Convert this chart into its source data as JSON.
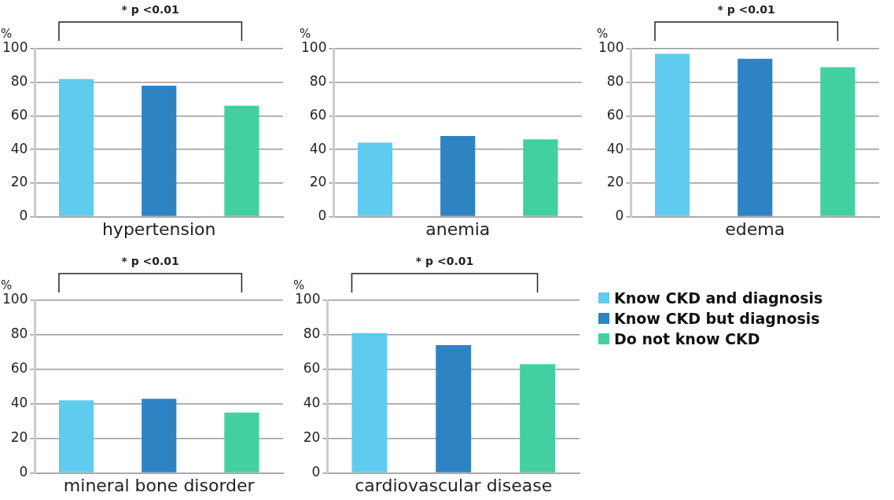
{
  "chart_data": [
    {
      "type": "bar",
      "categories": [
        null
      ],
      "xlabel": "hypertension",
      "ylabel": "%",
      "ylim": [
        0,
        100
      ],
      "yticks": [
        0,
        20,
        40,
        60,
        80,
        100
      ],
      "grid": "y",
      "tick_labels": "y",
      "annotations": [
        "* p <0.01"
      ],
      "legend": false,
      "series": [
        {
          "color": "#5ecbef",
          "values": [
            82
          ]
        },
        {
          "color": "#2e83c3",
          "values": [
            78
          ]
        },
        {
          "color": "#42d0a0",
          "values": [
            66
          ]
        }
      ]
    },
    {
      "type": "bar",
      "categories": [
        null
      ],
      "xlabel": "anemia",
      "ylabel": "%",
      "ylim": [
        0,
        100
      ],
      "yticks": [
        0,
        20,
        40,
        60,
        80,
        100
      ],
      "grid": "y",
      "tick_labels": "y",
      "legend": false,
      "series": [
        {
          "color": "#5ecbef",
          "values": [
            44
          ]
        },
        {
          "color": "#2e83c3",
          "values": [
            48
          ]
        },
        {
          "color": "#42d0a0",
          "values": [
            46
          ]
        }
      ]
    },
    {
      "type": "bar",
      "categories": [
        null
      ],
      "xlabel": "edema",
      "ylabel": "%",
      "ylim": [
        0,
        100
      ],
      "yticks": [
        0,
        20,
        40,
        60,
        80,
        100
      ],
      "grid": "y",
      "tick_labels": "y",
      "annotations": [
        "* p <0.01"
      ],
      "legend": false,
      "series": [
        {
          "color": "#5ecbef",
          "values": [
            97
          ]
        },
        {
          "color": "#2e83c3",
          "values": [
            94
          ]
        },
        {
          "color": "#42d0a0",
          "values": [
            89
          ]
        }
      ]
    },
    {
      "type": "bar",
      "categories": [
        null
      ],
      "xlabel": "mineral bone disorder",
      "ylabel": "%",
      "ylim": [
        0,
        100
      ],
      "yticks": [
        0,
        20,
        40,
        60,
        80,
        100
      ],
      "grid": "y",
      "tick_labels": "y",
      "annotations": [
        "* p <0.01"
      ],
      "legend": false,
      "series": [
        {
          "color": "#5ecbef",
          "values": [
            42
          ]
        },
        {
          "color": "#2e83c3",
          "values": [
            43
          ]
        },
        {
          "color": "#42d0a0",
          "values": [
            35
          ]
        }
      ]
    },
    {
      "type": "bar",
      "categories": [
        null
      ],
      "xlabel": "cardiovascular disease",
      "ylabel": "%",
      "ylim": [
        0,
        100
      ],
      "yticks": [
        0,
        20,
        40,
        60,
        80,
        100
      ],
      "grid": "y",
      "tick_labels": "y",
      "annotations": [
        "* p <0.01"
      ],
      "legend": "right",
      "series": [
        {
          "name": "Know CKD and diagnosis",
          "color": "#5ecbef",
          "values": [
            81
          ]
        },
        {
          "name": "Know CKD but diagnosis",
          "color": "#2e83c3",
          "values": [
            74
          ]
        },
        {
          "name": "Do not know CKD",
          "color": "#42d0a0",
          "values": [
            63
          ]
        }
      ]
    }
  ]
}
